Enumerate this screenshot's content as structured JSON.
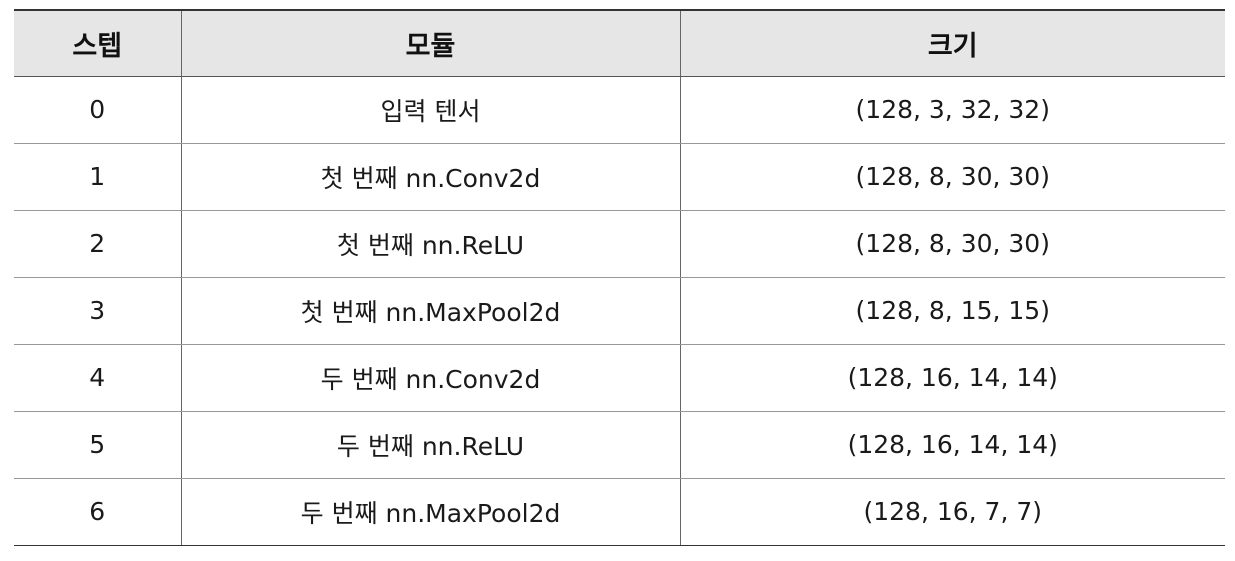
{
  "table": {
    "headers": [
      "스텝",
      "모듈",
      "크기"
    ],
    "rows": [
      {
        "step": "0",
        "module": "입력 텐서",
        "size": "(128, 3, 32, 32)"
      },
      {
        "step": "1",
        "module": "첫 번째 nn.Conv2d",
        "size": "(128, 8, 30, 30)"
      },
      {
        "step": "2",
        "module": "첫 번째 nn.ReLU",
        "size": "(128, 8, 30, 30)"
      },
      {
        "step": "3",
        "module": "첫 번째 nn.MaxPool2d",
        "size": "(128, 8, 15, 15)"
      },
      {
        "step": "4",
        "module": "두 번째 nn.Conv2d",
        "size": "(128, 16, 14, 14)"
      },
      {
        "step": "5",
        "module": "두 번째 nn.ReLU",
        "size": "(128, 16, 14, 14)"
      },
      {
        "step": "6",
        "module": "두 번째 nn.MaxPool2d",
        "size": "(128, 16, 7, 7)"
      }
    ]
  },
  "colors": {
    "header_background": "#e6e6e6",
    "rule_color": "#333333",
    "grid_color": "#999999"
  }
}
